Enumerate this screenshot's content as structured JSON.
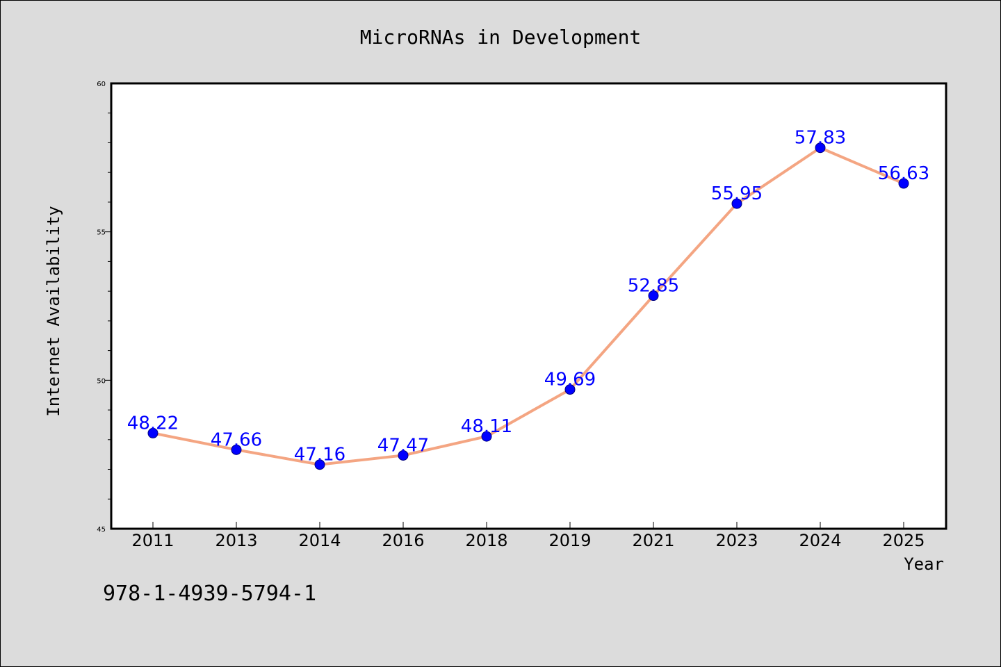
{
  "chart_data": {
    "type": "line",
    "title": "MicroRNAs in Development",
    "xlabel": "Year",
    "ylabel": "Internet Availability",
    "categories": [
      "2011",
      "2013",
      "2014",
      "2016",
      "2018",
      "2019",
      "2021",
      "2023",
      "2024",
      "2025"
    ],
    "series": [
      {
        "values": [
          48.22,
          47.66,
          47.16,
          47.47,
          48.11,
          49.69,
          52.85,
          55.95,
          57.83,
          56.63
        ]
      }
    ],
    "data_labels": [
      "48.22",
      "47.66",
      "47.16",
      "47.47",
      "48.11",
      "49.69",
      "52.85",
      "55.95",
      "57.83",
      "56.63"
    ],
    "ylim": [
      45,
      60
    ],
    "yticks": [
      "45",
      "50",
      "55",
      "60"
    ],
    "grid": false,
    "legend": "none"
  },
  "footnote": "978-1-4939-5794-1",
  "colors": {
    "background": "#dcdcdc",
    "plot_background": "#ffffff",
    "line": "#f4a582",
    "marker": "#0000ff",
    "data_label": "#0000ff",
    "axes": "#000000"
  }
}
